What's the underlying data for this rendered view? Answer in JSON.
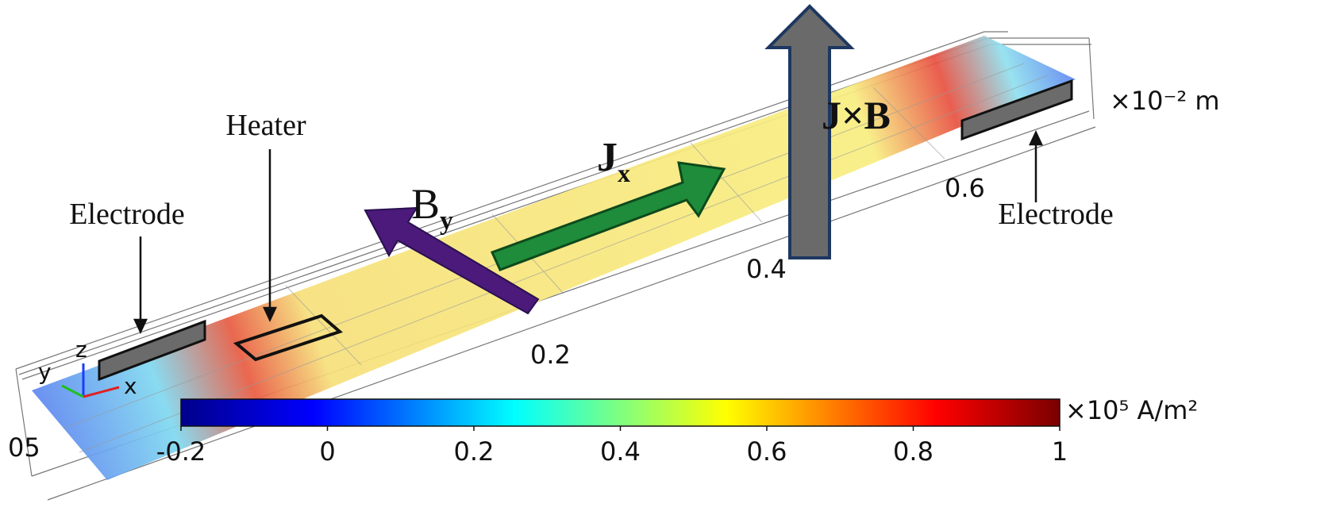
{
  "labels": {
    "heater": "Heater",
    "electrode_left": "Electrode",
    "electrode_right": "Electrode",
    "by": {
      "base": "B",
      "sub": "y"
    },
    "jx": {
      "base": "J",
      "sub": "x"
    },
    "jxb": "J×B"
  },
  "length_axis": {
    "ticks": [
      "05",
      "0.2",
      "0.4",
      "0.6"
    ],
    "unit": "×10⁻² m"
  },
  "triad": {
    "x": "x",
    "y": "y",
    "z": "z"
  },
  "colorbar": {
    "lim": [
      -0.2,
      1
    ],
    "ticks": [
      -0.2,
      0,
      0.2,
      0.4,
      0.6,
      0.8,
      1
    ],
    "unit": "×10⁵ A/m²"
  }
}
